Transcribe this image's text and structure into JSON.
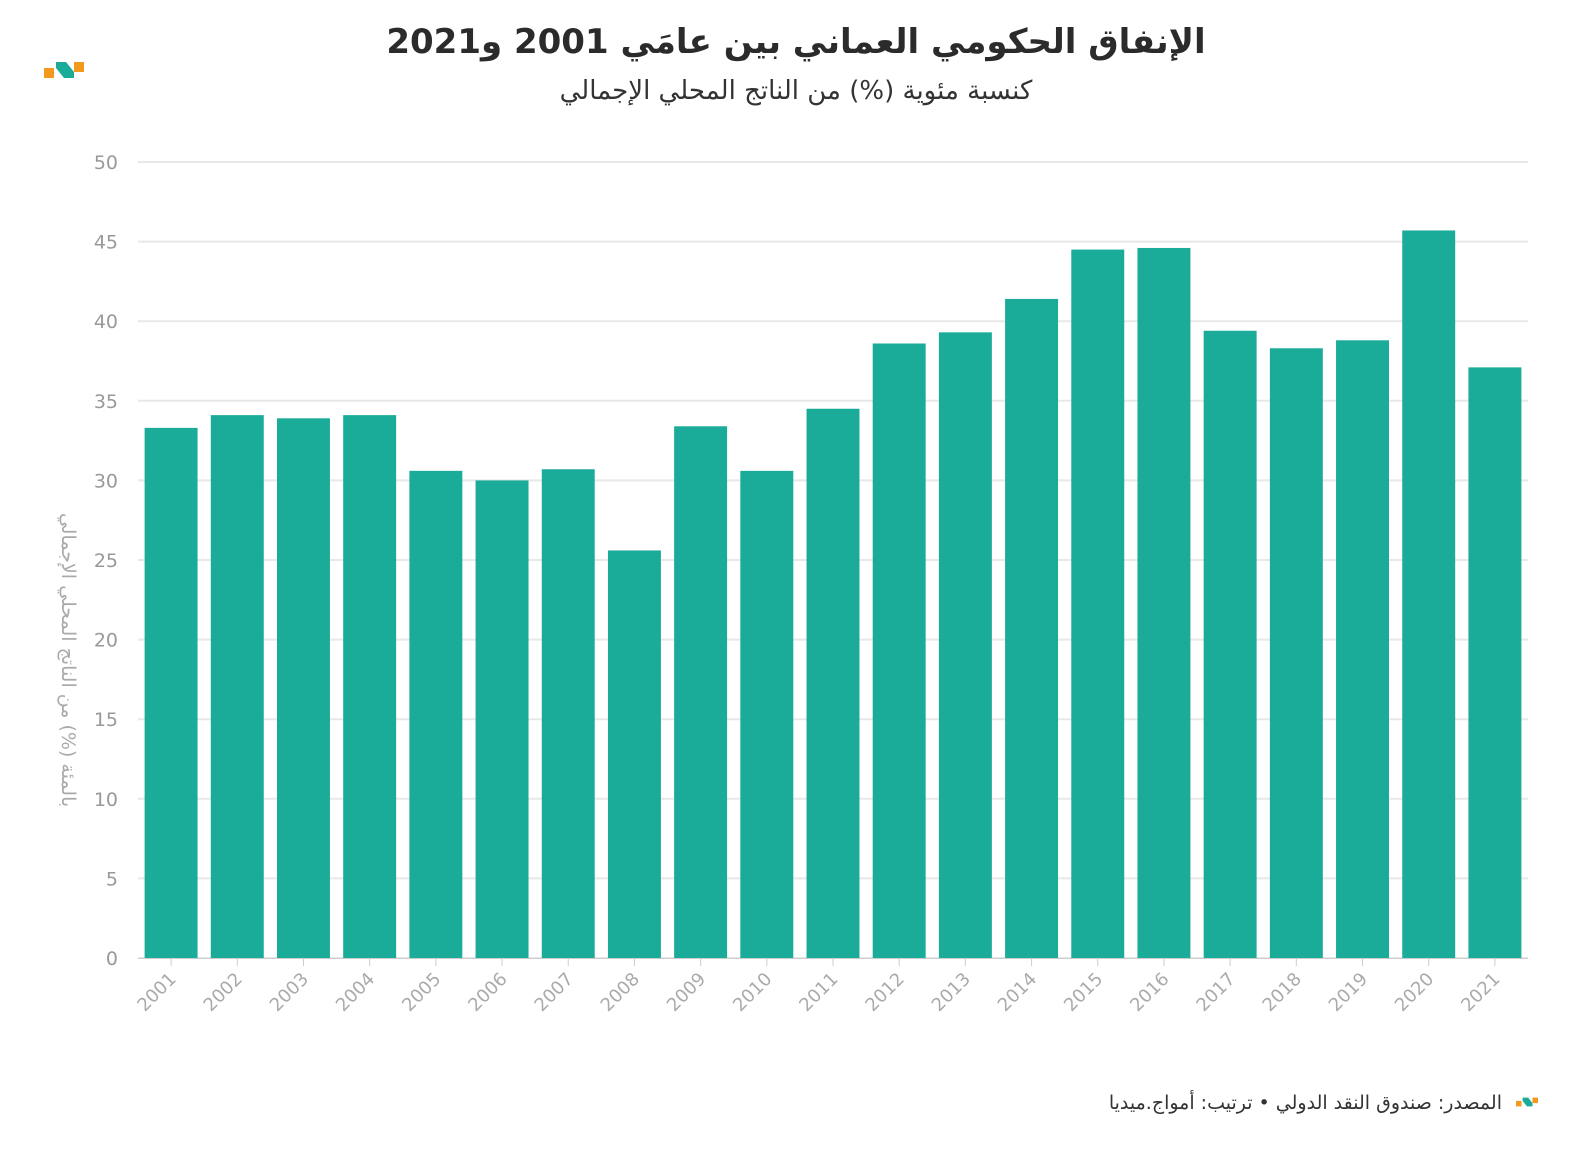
{
  "header": {
    "title": "الإنفاق الحكومي العماني بين عامَي 2001 و2021",
    "subtitle": "كنسبة مئوية (%) من الناتج المحلي الإجمالي"
  },
  "footer": {
    "source": "المصدر: صندوق النقد الدولي • ترتيب: أمواج.ميديا"
  },
  "colors": {
    "bar": "#1aab99",
    "logo_orange": "#f39a1e",
    "logo_teal": "#1aab99"
  },
  "chart_data": {
    "type": "bar",
    "title": "الإنفاق الحكومي العماني بين عامَي 2001 و2021",
    "subtitle": "كنسبة مئوية (%) من الناتج المحلي الإجمالي",
    "xlabel": "",
    "ylabel": "بالمئة (%) من الناتج المحلي الإجمالي",
    "categories": [
      "2001",
      "2002",
      "2003",
      "2004",
      "2005",
      "2006",
      "2007",
      "2008",
      "2009",
      "2010",
      "2011",
      "2012",
      "2013",
      "2014",
      "2015",
      "2016",
      "2017",
      "2018",
      "2019",
      "2020",
      "2021"
    ],
    "values": [
      33.3,
      34.1,
      33.9,
      34.1,
      30.6,
      30.0,
      30.7,
      25.6,
      33.4,
      30.6,
      34.5,
      38.6,
      39.3,
      41.4,
      44.5,
      44.6,
      39.4,
      38.3,
      38.8,
      45.7,
      37.1
    ],
    "ylim": [
      0,
      50
    ],
    "yticks": [
      0,
      5,
      10,
      15,
      20,
      25,
      30,
      35,
      40,
      45,
      50
    ],
    "grid": true,
    "legend": "none"
  }
}
